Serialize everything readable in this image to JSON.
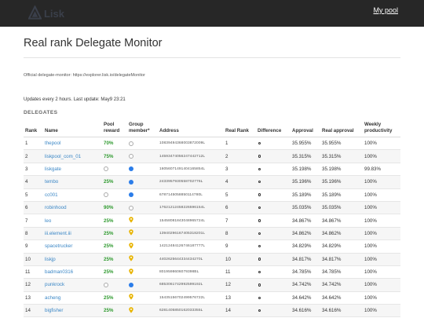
{
  "nav": {
    "logo_text": "Lisk",
    "mypool_label": "My pool"
  },
  "page": {
    "title": "Real rank Delegate Monitor",
    "official": "Official delegate-monitor: https://explorer.lisk.io/delegateMonitor",
    "updates": "Updates every 2 hours. Last update: May9 23:21",
    "section": "DELEGATES"
  },
  "colors": {
    "link": "#3b87c6",
    "reward": "#2f9a2f",
    "member_blue": "#2b7de9",
    "member_pin": "#e8b400",
    "topbar": "#272727"
  },
  "table": {
    "headers": {
      "rank": "Rank",
      "name": "Name",
      "reward": "Pool reward",
      "member": "Group member*",
      "address": "Address",
      "real_rank": "Real Rank",
      "difference": "Difference",
      "approval": "Approval",
      "real_approval": "Real approval",
      "productivity": "Weekly productivity"
    },
    "rows": [
      {
        "rank": "1",
        "name": "thepool",
        "reward": "70%",
        "member": "empty",
        "address": "10839494368003872009L",
        "real_rank": "1",
        "approval": "35.955%",
        "real_approval": "35.955%",
        "productivity": "100%"
      },
      {
        "rank": "2",
        "name": "liskpool_com_01",
        "reward": "75%",
        "member": "empty",
        "address": "14593474056247442712L",
        "real_rank": "2",
        "approval": "35.315%",
        "real_approval": "35.315%",
        "productivity": "100%"
      },
      {
        "rank": "3",
        "name": "liskgate",
        "reward": "",
        "member": "blue",
        "address": "16056071491404165854L",
        "real_rank": "3",
        "approval": "35.198%",
        "real_approval": "35.198%",
        "productivity": "99.83%"
      },
      {
        "rank": "4",
        "name": "tembo",
        "reward": "25%",
        "member": "blue",
        "address": "2433957930558702776L",
        "real_rank": "4",
        "approval": "35.196%",
        "real_approval": "35.196%",
        "productivity": "100%"
      },
      {
        "rank": "5",
        "name": "cc001",
        "reward": "",
        "member": "blue",
        "address": "6787145058850114780L",
        "real_rank": "5",
        "approval": "35.189%",
        "real_approval": "35.189%",
        "productivity": "100%"
      },
      {
        "rank": "6",
        "name": "robinhood",
        "reward": "90%",
        "member": "empty",
        "address": "17621212458226596154L",
        "real_rank": "6",
        "approval": "35.035%",
        "real_approval": "35.035%",
        "productivity": "100%"
      },
      {
        "rank": "7",
        "name": "leo",
        "reward": "25%",
        "member": "pin",
        "address": "15458081843048965724L",
        "real_rank": "7",
        "approval": "34.867%",
        "real_approval": "34.867%",
        "productivity": "100%"
      },
      {
        "rank": "8",
        "name": "iii.element.iii",
        "reward": "25%",
        "member": "pin",
        "address": "13940296167405318201L",
        "real_rank": "8",
        "approval": "34.862%",
        "real_approval": "34.862%",
        "productivity": "100%"
      },
      {
        "rank": "9",
        "name": "spacetrucker",
        "reward": "25%",
        "member": "pin",
        "address": "14212484126746187777L",
        "real_rank": "9",
        "approval": "34.829%",
        "real_approval": "34.829%",
        "productivity": "100%"
      },
      {
        "rank": "10",
        "name": "liskjp",
        "reward": "25%",
        "member": "pin",
        "address": "4402625644334434270L",
        "real_rank": "10",
        "approval": "34.817%",
        "real_approval": "34.817%",
        "productivity": "100%"
      },
      {
        "rank": "11",
        "name": "badman0316",
        "reward": "25%",
        "member": "pin",
        "address": "8019598606079398BL",
        "real_rank": "11",
        "approval": "34.785%",
        "real_approval": "34.785%",
        "productivity": "100%"
      },
      {
        "rank": "12",
        "name": "punkrock",
        "reward": "",
        "member": "blue",
        "address": "6853061742992599192L",
        "real_rank": "12",
        "approval": "34.742%",
        "real_approval": "34.742%",
        "productivity": "100%"
      },
      {
        "rank": "13",
        "name": "acheng",
        "reward": "25%",
        "member": "pin",
        "address": "15435156702499576722L",
        "real_rank": "13",
        "approval": "34.642%",
        "real_approval": "34.642%",
        "productivity": "100%"
      },
      {
        "rank": "14",
        "name": "bigfisher",
        "reward": "25%",
        "member": "pin",
        "address": "6281405850162033355L",
        "real_rank": "14",
        "approval": "34.616%",
        "real_approval": "34.616%",
        "productivity": "100%"
      }
    ]
  }
}
